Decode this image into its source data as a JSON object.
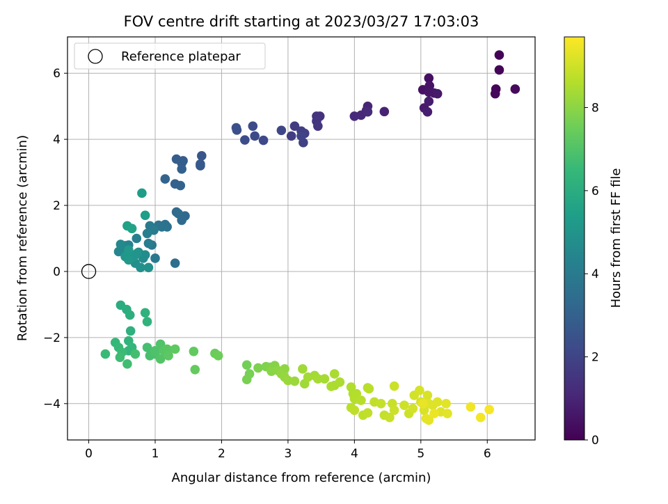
{
  "chart_data": {
    "type": "scatter",
    "title": "FOV centre drift starting at 2023/03/27 17:03:03",
    "xlabel": "Angular distance from reference (arcmin)",
    "ylabel": "Rotation from reference (arcmin)",
    "xlim": [
      -0.32,
      6.72
    ],
    "ylim": [
      -5.1,
      7.1
    ],
    "xticks": [
      0,
      1,
      2,
      3,
      4,
      5,
      6
    ],
    "yticks": [
      -4,
      -2,
      0,
      2,
      4,
      6
    ],
    "grid": true,
    "legend": {
      "placement": "top-left",
      "entries": [
        "Reference platepar"
      ]
    },
    "reference_point": {
      "x": 0,
      "y": 0
    },
    "colorbar": {
      "label": "Hours from first FF file",
      "colormap": "viridis",
      "range": [
        0,
        9.7
      ],
      "ticks": [
        0,
        2,
        4,
        6,
        8
      ]
    },
    "colormap_stops": [
      "#440154",
      "#482878",
      "#3e4989",
      "#31688e",
      "#26828e",
      "#1f9e89",
      "#35b779",
      "#6ece58",
      "#b5de2b",
      "#fde725"
    ],
    "point_columns": [
      "x",
      "y",
      "hours"
    ],
    "points": [
      [
        6.18,
        6.55,
        0.05
      ],
      [
        6.18,
        6.1,
        0.1
      ],
      [
        6.13,
        5.52,
        0.15
      ],
      [
        6.12,
        5.38,
        0.2
      ],
      [
        6.42,
        5.52,
        0.25
      ],
      [
        5.12,
        5.85,
        0.4
      ],
      [
        5.03,
        5.5,
        0.45
      ],
      [
        5.13,
        5.62,
        0.5
      ],
      [
        5.12,
        5.43,
        0.55
      ],
      [
        5.2,
        5.4,
        0.6
      ],
      [
        5.25,
        5.38,
        0.65
      ],
      [
        5.05,
        4.95,
        0.7
      ],
      [
        5.12,
        5.15,
        0.75
      ],
      [
        5.1,
        4.83,
        0.8
      ],
      [
        4.45,
        4.84,
        0.95
      ],
      [
        4.2,
        5.0,
        1.0
      ],
      [
        4.18,
        4.87,
        1.05
      ],
      [
        4.1,
        4.73,
        1.1
      ],
      [
        4.0,
        4.7,
        1.15
      ],
      [
        4.2,
        4.83,
        1.2
      ],
      [
        3.48,
        4.7,
        1.4
      ],
      [
        3.43,
        4.7,
        1.45
      ],
      [
        3.43,
        4.55,
        1.5
      ],
      [
        3.45,
        4.4,
        1.55
      ],
      [
        3.1,
        4.4,
        1.7
      ],
      [
        3.05,
        4.1,
        1.75
      ],
      [
        3.2,
        4.25,
        1.8
      ],
      [
        3.25,
        4.18,
        1.85
      ],
      [
        3.23,
        3.9,
        1.9
      ],
      [
        3.2,
        4.1,
        1.95
      ],
      [
        2.9,
        4.27,
        2.05
      ],
      [
        2.63,
        3.97,
        2.15
      ],
      [
        2.5,
        4.1,
        2.2
      ],
      [
        2.47,
        4.4,
        2.25
      ],
      [
        2.35,
        3.98,
        2.3
      ],
      [
        2.22,
        4.35,
        2.35
      ],
      [
        2.23,
        4.28,
        2.4
      ],
      [
        1.7,
        3.5,
        2.6
      ],
      [
        1.68,
        3.2,
        2.65
      ],
      [
        1.68,
        3.25,
        2.7
      ],
      [
        1.42,
        3.35,
        2.8
      ],
      [
        1.32,
        3.4,
        2.85
      ],
      [
        1.4,
        3.28,
        2.9
      ],
      [
        1.4,
        3.1,
        2.95
      ],
      [
        1.3,
        2.65,
        3.0
      ],
      [
        1.38,
        2.6,
        3.05
      ],
      [
        1.15,
        2.8,
        3.1
      ],
      [
        1.45,
        1.68,
        3.25
      ],
      [
        1.4,
        1.55,
        3.3
      ],
      [
        1.32,
        1.8,
        3.35
      ],
      [
        1.35,
        1.75,
        3.4
      ],
      [
        1.3,
        0.25,
        3.5
      ],
      [
        1.15,
        1.42,
        3.6
      ],
      [
        1.18,
        1.35,
        3.65
      ],
      [
        1.1,
        1.35,
        3.7
      ],
      [
        1.05,
        1.4,
        3.75
      ],
      [
        0.95,
        0.8,
        3.85
      ],
      [
        1.0,
        0.4,
        3.9
      ],
      [
        0.92,
        1.38,
        4.0
      ],
      [
        0.98,
        1.25,
        4.05
      ],
      [
        0.9,
        0.85,
        4.1
      ],
      [
        0.88,
        1.15,
        4.15
      ],
      [
        0.72,
        1.0,
        4.2
      ],
      [
        0.6,
        0.8,
        4.25
      ],
      [
        0.6,
        0.55,
        4.3
      ],
      [
        0.55,
        0.78,
        4.4
      ],
      [
        0.52,
        0.62,
        4.45
      ],
      [
        0.45,
        0.6,
        4.5
      ],
      [
        0.48,
        0.82,
        4.55
      ],
      [
        0.75,
        0.58,
        4.6
      ],
      [
        0.82,
        0.4,
        4.7
      ],
      [
        0.85,
        0.5,
        4.75
      ],
      [
        0.7,
        0.25,
        4.8
      ],
      [
        0.78,
        0.12,
        4.85
      ],
      [
        0.9,
        0.12,
        4.9
      ],
      [
        0.73,
        0.55,
        5.0
      ],
      [
        0.68,
        0.45,
        5.05
      ],
      [
        0.55,
        0.45,
        5.1
      ],
      [
        0.6,
        0.35,
        5.15
      ],
      [
        0.6,
        0.65,
        5.2
      ],
      [
        0.8,
        2.37,
        5.35
      ],
      [
        0.85,
        1.7,
        5.4
      ],
      [
        0.58,
        1.38,
        5.5
      ],
      [
        0.65,
        1.3,
        5.55
      ],
      [
        0.48,
        -1.02,
        6.0
      ],
      [
        0.57,
        -1.15,
        6.05
      ],
      [
        0.62,
        -1.32,
        6.1
      ],
      [
        0.63,
        -1.8,
        6.15
      ],
      [
        0.85,
        -1.25,
        6.2
      ],
      [
        0.88,
        -1.52,
        6.25
      ],
      [
        0.6,
        -2.1,
        6.3
      ],
      [
        0.6,
        -2.4,
        6.35
      ],
      [
        0.65,
        -2.3,
        6.4
      ],
      [
        0.4,
        -2.15,
        6.45
      ],
      [
        0.45,
        -2.3,
        6.5
      ],
      [
        0.25,
        -2.5,
        6.55
      ],
      [
        0.5,
        -2.45,
        6.6
      ],
      [
        0.47,
        -2.6,
        6.65
      ],
      [
        0.58,
        -2.8,
        6.7
      ],
      [
        0.7,
        -2.5,
        6.75
      ],
      [
        0.88,
        -2.3,
        6.8
      ],
      [
        0.92,
        -2.55,
        6.85
      ],
      [
        1.0,
        -2.5,
        6.9
      ],
      [
        1.0,
        -2.4,
        6.95
      ],
      [
        1.08,
        -2.2,
        7.0
      ],
      [
        1.08,
        -2.65,
        7.05
      ],
      [
        1.13,
        -2.4,
        7.1
      ],
      [
        1.18,
        -2.35,
        7.15
      ],
      [
        1.2,
        -2.55,
        7.2
      ],
      [
        1.3,
        -2.35,
        7.25
      ],
      [
        1.58,
        -2.42,
        7.3
      ],
      [
        1.6,
        -2.97,
        7.35
      ],
      [
        1.9,
        -2.48,
        7.45
      ],
      [
        1.95,
        -2.55,
        7.5
      ],
      [
        2.38,
        -2.83,
        7.6
      ],
      [
        2.42,
        -3.1,
        7.65
      ],
      [
        2.38,
        -3.27,
        7.7
      ],
      [
        2.55,
        -2.92,
        7.75
      ],
      [
        2.67,
        -2.88,
        7.8
      ],
      [
        2.73,
        -2.9,
        7.85
      ],
      [
        2.8,
        -2.85,
        7.9
      ],
      [
        2.75,
        -3.02,
        7.95
      ],
      [
        2.85,
        -3.0,
        8.0
      ],
      [
        2.95,
        -2.95,
        8.05
      ],
      [
        2.9,
        -3.1,
        8.1
      ],
      [
        2.95,
        -3.2,
        8.15
      ],
      [
        3.0,
        -3.3,
        8.2
      ],
      [
        3.1,
        -3.32,
        8.25
      ],
      [
        3.22,
        -2.95,
        8.3
      ],
      [
        3.25,
        -3.4,
        8.3
      ],
      [
        3.3,
        -3.2,
        8.35
      ],
      [
        3.4,
        -3.15,
        8.35
      ],
      [
        3.45,
        -3.25,
        8.4
      ],
      [
        3.55,
        -3.25,
        8.4
      ],
      [
        3.7,
        -3.1,
        8.45
      ],
      [
        3.7,
        -3.45,
        8.45
      ],
      [
        3.78,
        -3.35,
        8.5
      ],
      [
        3.65,
        -3.48,
        8.5
      ],
      [
        3.95,
        -3.5,
        8.55
      ],
      [
        3.98,
        -3.7,
        8.55
      ],
      [
        4.0,
        -3.85,
        8.6
      ],
      [
        4.03,
        -3.7,
        8.6
      ],
      [
        4.1,
        -3.9,
        8.65
      ],
      [
        4.2,
        -3.52,
        8.65
      ],
      [
        4.22,
        -3.55,
        8.7
      ],
      [
        3.95,
        -4.12,
        8.7
      ],
      [
        4.0,
        -4.2,
        8.75
      ],
      [
        4.13,
        -4.35,
        8.75
      ],
      [
        4.2,
        -4.28,
        8.8
      ],
      [
        4.3,
        -3.95,
        8.8
      ],
      [
        4.4,
        -4.0,
        8.85
      ],
      [
        4.45,
        -4.35,
        8.85
      ],
      [
        4.53,
        -4.42,
        8.9
      ],
      [
        4.57,
        -4.0,
        8.9
      ],
      [
        4.6,
        -3.47,
        8.95
      ],
      [
        4.6,
        -4.2,
        8.95
      ],
      [
        4.75,
        -4.05,
        9.0
      ],
      [
        4.82,
        -4.3,
        9.0
      ],
      [
        4.88,
        -4.15,
        9.05
      ],
      [
        4.9,
        -3.75,
        9.05
      ],
      [
        4.98,
        -3.6,
        9.1
      ],
      [
        5.0,
        -3.95,
        9.1
      ],
      [
        5.05,
        -4.2,
        9.15
      ],
      [
        5.1,
        -3.75,
        9.15
      ],
      [
        5.12,
        -4.0,
        9.2
      ],
      [
        5.18,
        -4.05,
        9.2
      ],
      [
        5.25,
        -3.95,
        9.25
      ],
      [
        5.3,
        -4.25,
        9.25
      ],
      [
        5.38,
        -4.0,
        9.3
      ],
      [
        5.4,
        -4.3,
        9.3
      ],
      [
        5.08,
        -4.45,
        9.35
      ],
      [
        5.12,
        -4.5,
        9.35
      ],
      [
        5.03,
        -4.0,
        9.4
      ],
      [
        5.2,
        -4.3,
        9.45
      ],
      [
        5.75,
        -4.1,
        9.5
      ],
      [
        5.9,
        -4.42,
        9.55
      ],
      [
        6.03,
        -4.18,
        9.6
      ]
    ]
  }
}
